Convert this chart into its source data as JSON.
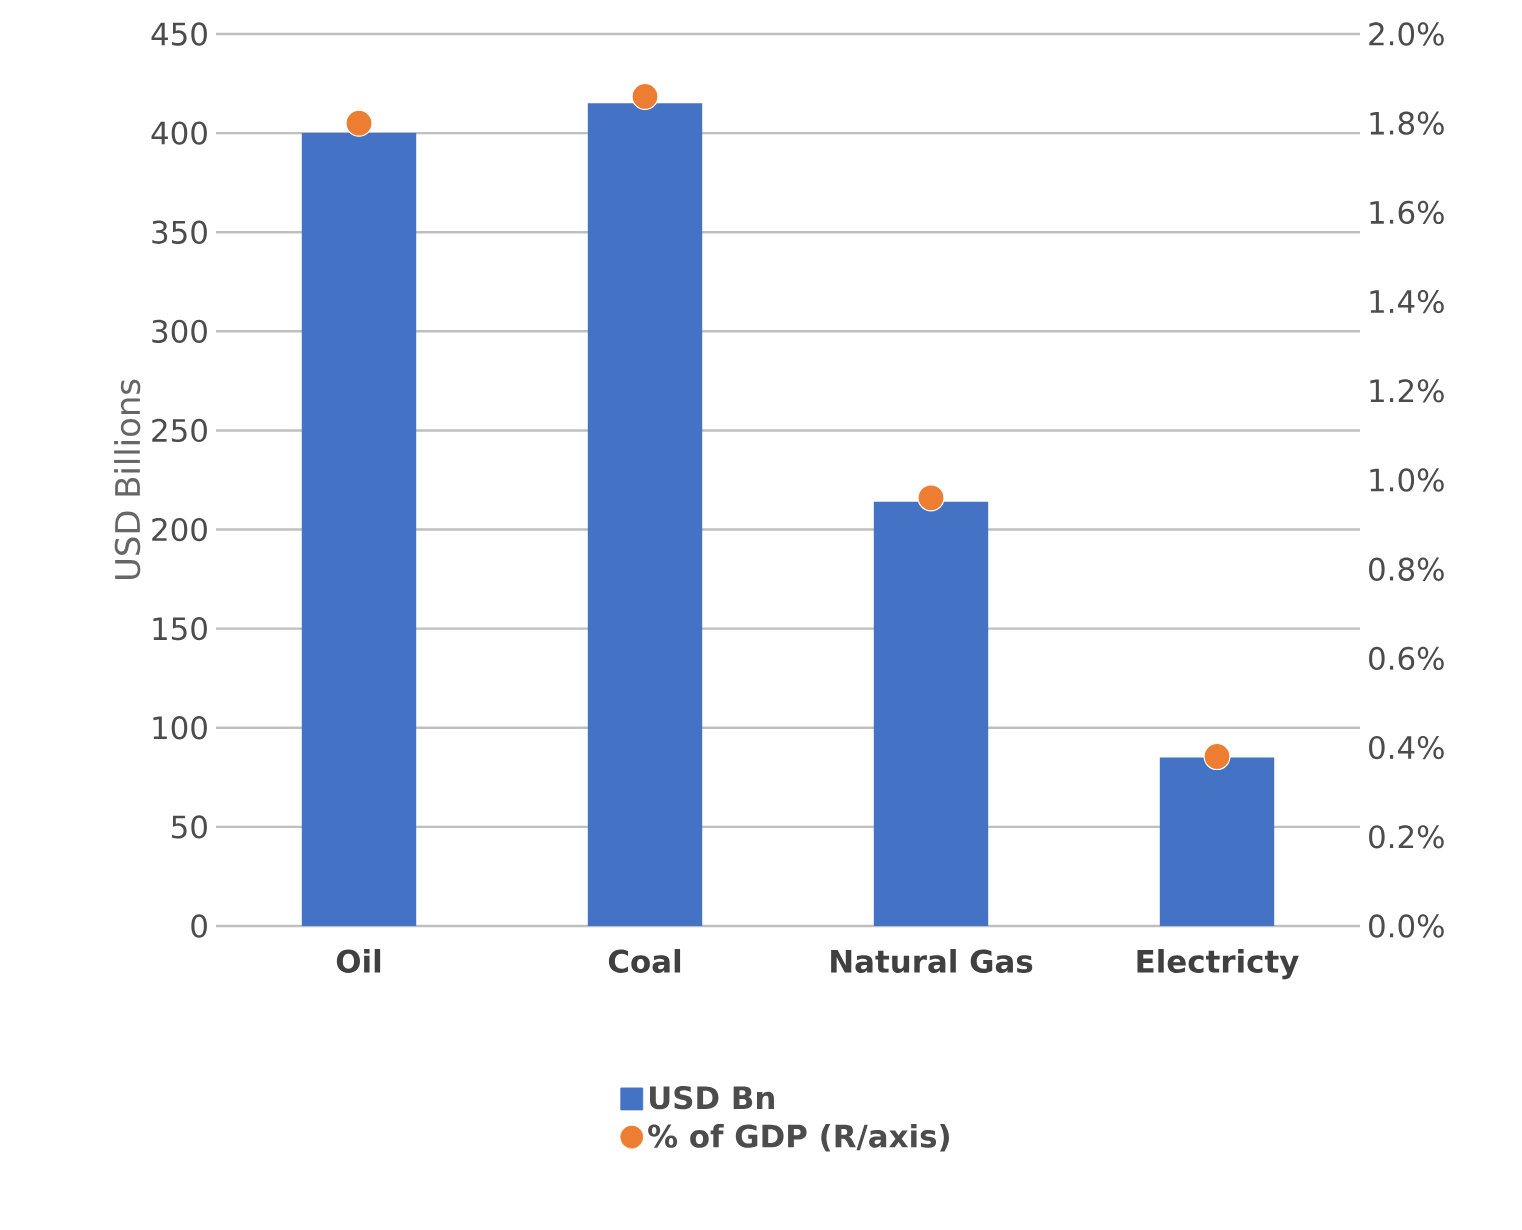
{
  "chart_data": {
    "type": "bar",
    "ylabel": "USD Billions",
    "categories": [
      "Oil",
      "Coal",
      "Natural Gas",
      "Electricty"
    ],
    "series": [
      {
        "name": "USD Bn",
        "color": "#4472c4",
        "values": [
          400,
          415,
          214,
          85
        ]
      },
      {
        "name": "% of GDP (R/axis)",
        "type": "scatter",
        "axis": "y2",
        "color": "#ed7d31",
        "values": [
          1.8,
          1.86,
          0.96,
          0.38
        ]
      }
    ],
    "ylim": [
      0,
      450
    ],
    "yticks": [
      0,
      50,
      100,
      150,
      200,
      250,
      300,
      350,
      400,
      450
    ],
    "y2lim": [
      0,
      2
    ],
    "y2ticks": [
      {
        "value": 0,
        "label": "0.0%"
      },
      {
        "value": 0.2,
        "label": "0.2%"
      },
      {
        "value": 0.4,
        "label": "0.4%"
      },
      {
        "value": 0.6,
        "label": "0.6%"
      },
      {
        "value": 0.8,
        "label": "0.8%"
      },
      {
        "value": 1.0,
        "label": "1.0%"
      },
      {
        "value": 1.2,
        "label": "1.2%"
      },
      {
        "value": 1.4,
        "label": "1.4%"
      },
      {
        "value": 1.6,
        "label": "1.6%"
      },
      {
        "value": 1.8,
        "label": "1.8%"
      },
      {
        "value": 2.0,
        "label": "2.0%"
      }
    ],
    "grid": "y",
    "legend": "bottom",
    "marker": "circle"
  }
}
